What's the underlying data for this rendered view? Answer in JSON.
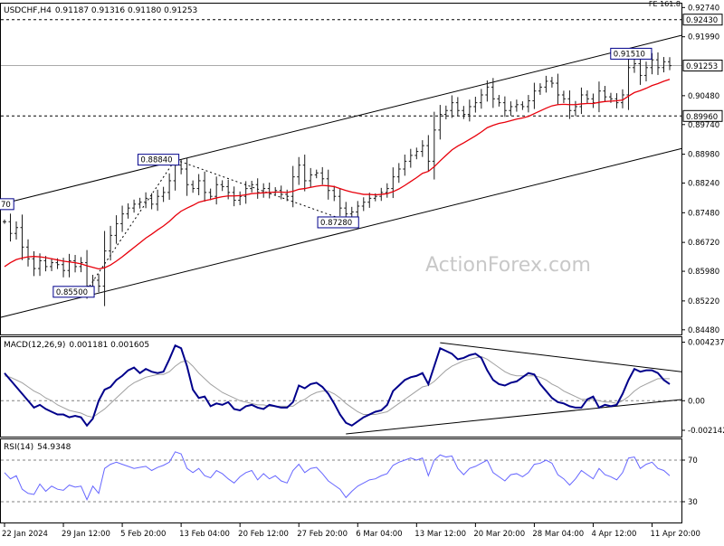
{
  "header": {
    "symbol_tf": "USDCHF,H4",
    "ohlc": "0.91187 0.91316 0.91180 0.91253",
    "corner_text": "FE 161.8"
  },
  "watermark": "ActionForex.com",
  "colors": {
    "price": "#1a1a1a",
    "ma": "#e8000b",
    "macd": "#00008b",
    "signal": "#a0a0a0",
    "rsi": "#6666ff",
    "trendline": "#000000",
    "grid": "#808080",
    "label_box": "#00008b"
  },
  "chart_data": [
    {
      "type": "candlestick",
      "name": "price",
      "ylim": [
        0.8436,
        0.9284
      ],
      "yticks": [
        "0.92740",
        "0.91990",
        "0.90480",
        "0.89740",
        "0.88980",
        "0.88240",
        "0.87480",
        "0.86720",
        "0.85980",
        "0.85220",
        "0.84480"
      ],
      "ytick_values": [
        0.9274,
        0.9199,
        0.9048,
        0.8974,
        0.8898,
        0.8824,
        0.8748,
        0.8672,
        0.8598,
        0.8522,
        0.8448
      ],
      "reference_lines": [
        {
          "label": "0.92430",
          "value": 0.9243,
          "style": "dashed"
        },
        {
          "label": "0.89960",
          "value": 0.8996,
          "style": "dashed"
        },
        {
          "label": "0.91253",
          "value": 0.91253,
          "style": "solid"
        }
      ],
      "annotations": [
        {
          "label": "0.88840",
          "x": 29,
          "y": 0.8884
        },
        {
          "label": "0.87280",
          "x": 58,
          "y": 0.8728
        },
        {
          "label": "0.85500",
          "x": 14,
          "y": 0.855
        },
        {
          "label": "0.91510",
          "x": 109,
          "y": 0.9151
        },
        {
          "label": "70",
          "x": 0,
          "y": 0.877
        }
      ],
      "x": [
        0,
        1,
        2,
        3,
        4,
        5,
        6,
        7,
        8,
        9,
        10,
        11,
        12,
        13,
        14,
        15,
        16,
        17,
        18,
        19,
        20,
        21,
        22,
        23,
        24,
        25,
        26,
        27,
        28,
        29,
        30,
        31,
        32,
        33,
        34,
        35,
        36,
        37,
        38,
        39,
        40,
        41,
        42,
        43,
        44,
        45,
        46,
        47,
        48,
        49,
        50,
        51,
        52,
        53,
        54,
        55,
        56,
        57,
        58,
        59,
        60,
        61,
        62,
        63,
        64,
        65,
        66,
        67,
        68,
        69,
        70,
        71,
        72,
        73,
        74,
        75,
        76,
        77,
        78,
        79,
        80,
        81,
        82,
        83,
        84,
        85,
        86,
        87,
        88,
        89,
        90,
        91,
        92,
        93,
        94,
        95,
        96,
        97,
        98,
        99,
        100,
        101,
        102,
        103,
        104,
        105,
        106,
        107,
        108,
        109,
        110,
        111,
        112,
        113
      ],
      "close": [
        0.8725,
        0.8695,
        0.871,
        0.866,
        0.863,
        0.8605,
        0.8625,
        0.861,
        0.862,
        0.8615,
        0.86,
        0.8625,
        0.861,
        0.862,
        0.856,
        0.8575,
        0.856,
        0.865,
        0.869,
        0.872,
        0.8745,
        0.876,
        0.877,
        0.8775,
        0.8785,
        0.877,
        0.879,
        0.88,
        0.883,
        0.887,
        0.886,
        0.882,
        0.881,
        0.883,
        0.88,
        0.879,
        0.882,
        0.8815,
        0.88,
        0.878,
        0.879,
        0.881,
        0.882,
        0.88,
        0.881,
        0.88,
        0.8805,
        0.8795,
        0.879,
        0.884,
        0.887,
        0.883,
        0.8845,
        0.885,
        0.8835,
        0.8805,
        0.879,
        0.876,
        0.8745,
        0.875,
        0.8765,
        0.8775,
        0.8785,
        0.879,
        0.88,
        0.881,
        0.884,
        0.886,
        0.888,
        0.8895,
        0.8905,
        0.892,
        0.888,
        0.896,
        0.9,
        0.901,
        0.903,
        0.901,
        0.9,
        0.902,
        0.903,
        0.905,
        0.907,
        0.904,
        0.903,
        0.901,
        0.902,
        0.9025,
        0.902,
        0.9035,
        0.906,
        0.907,
        0.9085,
        0.908,
        0.905,
        0.904,
        0.901,
        0.902,
        0.905,
        0.904,
        0.903,
        0.906,
        0.9045,
        0.904,
        0.903,
        0.905,
        0.912,
        0.913,
        0.91,
        0.912,
        0.914,
        0.912,
        0.9135,
        0.9125
      ],
      "ma": [
        0.861,
        0.862,
        0.8628,
        0.8632,
        0.8635,
        0.8636,
        0.8635,
        0.8633,
        0.863,
        0.8627,
        0.8624,
        0.8622,
        0.862,
        0.8617,
        0.8612,
        0.8608,
        0.8604,
        0.8607,
        0.8614,
        0.8624,
        0.8635,
        0.8647,
        0.8659,
        0.8671,
        0.8683,
        0.8693,
        0.8704,
        0.8714,
        0.8726,
        0.874,
        0.8752,
        0.876,
        0.8767,
        0.8775,
        0.8779,
        0.8782,
        0.8786,
        0.8789,
        0.8791,
        0.8791,
        0.8792,
        0.8794,
        0.8797,
        0.8798,
        0.8799,
        0.88,
        0.8801,
        0.8801,
        0.88,
        0.8803,
        0.8808,
        0.881,
        0.8813,
        0.8816,
        0.8818,
        0.8817,
        0.8815,
        0.881,
        0.8805,
        0.8801,
        0.8798,
        0.8795,
        0.8795,
        0.8794,
        0.8795,
        0.8797,
        0.8802,
        0.8809,
        0.8818,
        0.8828,
        0.8838,
        0.8849,
        0.8854,
        0.8866,
        0.8881,
        0.8895,
        0.8909,
        0.8919,
        0.8927,
        0.8936,
        0.8945,
        0.8955,
        0.8966,
        0.8972,
        0.8977,
        0.898,
        0.8984,
        0.8988,
        0.8991,
        0.8995,
        0.9002,
        0.9009,
        0.9016,
        0.9022,
        0.9025,
        0.9026,
        0.9025,
        0.9025,
        0.9027,
        0.9028,
        0.9028,
        0.9031,
        0.9033,
        0.9034,
        0.9035,
        0.9037,
        0.9047,
        0.9056,
        0.9061,
        0.9067,
        0.9074,
        0.9079,
        0.9085,
        0.909
      ],
      "channel": {
        "upper": [
          [
            0,
            0.877
          ],
          [
            113,
            0.9195
          ]
        ],
        "lower": [
          [
            0,
            0.848
          ],
          [
            113,
            0.8905
          ]
        ],
        "dotted": [
          [
            14,
            0.855
          ],
          [
            29,
            0.8884
          ],
          [
            58,
            0.8728
          ]
        ]
      }
    },
    {
      "type": "line",
      "name": "MACD(12,26,9)",
      "values_text": "0.001181 0.001605",
      "ylim": [
        -0.0026,
        0.0046
      ],
      "yticks": [
        "0.004237",
        "0.00",
        "-0.002142"
      ],
      "ytick_values": [
        0.004237,
        0.0,
        -0.002142
      ],
      "series": [
        {
          "name": "MACD",
          "values": [
            0.002,
            0.0015,
            0.001,
            0.0005,
            0.0,
            -0.0005,
            -0.0003,
            -0.0006,
            -0.0008,
            -0.001,
            -0.001,
            -0.0012,
            -0.0011,
            -0.0012,
            -0.0018,
            -0.0013,
            0.0,
            0.0008,
            0.001,
            0.0015,
            0.0018,
            0.0022,
            0.0024,
            0.002,
            0.0023,
            0.0021,
            0.002,
            0.0021,
            0.003,
            0.004,
            0.0038,
            0.0025,
            0.0008,
            0.0002,
            0.0003,
            -0.0004,
            -0.0002,
            -0.0003,
            -0.0001,
            -0.0006,
            -0.0007,
            -0.0004,
            -0.0003,
            -0.0005,
            -0.0006,
            -0.0003,
            -0.0004,
            -0.0005,
            -0.0005,
            -0.0001,
            0.0011,
            0.0009,
            0.0012,
            0.0013,
            0.001,
            0.0005,
            -0.0002,
            -0.001,
            -0.0016,
            -0.0018,
            -0.0015,
            -0.0012,
            -0.001,
            -0.0008,
            -0.0007,
            -0.0003,
            0.0007,
            0.0011,
            0.0015,
            0.0017,
            0.0018,
            0.002,
            0.0012,
            0.0025,
            0.0038,
            0.0036,
            0.0034,
            0.003,
            0.0031,
            0.0033,
            0.0034,
            0.0031,
            0.0022,
            0.0015,
            0.0012,
            0.0011,
            0.0013,
            0.0014,
            0.0017,
            0.002,
            0.0019,
            0.0012,
            0.0007,
            0.0002,
            -0.0001,
            -0.0002,
            -0.0004,
            -0.0005,
            -0.0005,
            0.0001,
            0.0003,
            -0.0005,
            -0.0003,
            -0.0004,
            -0.0003,
            0.0005,
            0.0015,
            0.0023,
            0.0021,
            0.0022,
            0.0022,
            0.002,
            0.0015,
            0.0012
          ]
        },
        {
          "name": "Signal",
          "values": [
            0.0018,
            0.0017,
            0.0015,
            0.0013,
            0.001,
            0.0007,
            0.0005,
            0.0002,
            0.0,
            -0.0003,
            -0.0005,
            -0.0007,
            -0.0008,
            -0.0009,
            -0.0011,
            -0.0012,
            -0.0009,
            -0.0006,
            -0.0002,
            0.0002,
            0.0006,
            0.001,
            0.0013,
            0.0015,
            0.0017,
            0.0018,
            0.0019,
            0.0019,
            0.0021,
            0.0025,
            0.0028,
            0.0029,
            0.0025,
            0.002,
            0.0016,
            0.0012,
            0.0009,
            0.0006,
            0.0004,
            0.0002,
            0.0,
            -0.0001,
            -0.0002,
            -0.0003,
            -0.0003,
            -0.0004,
            -0.0004,
            -0.0004,
            -0.0004,
            -0.0004,
            -0.0001,
            0.0001,
            0.0004,
            0.0006,
            0.0007,
            0.0007,
            0.0005,
            0.0002,
            -0.0002,
            -0.0005,
            -0.0008,
            -0.001,
            -0.001,
            -0.001,
            -0.0009,
            -0.0008,
            -0.0005,
            -0.0002,
            0.0001,
            0.0004,
            0.0007,
            0.001,
            0.0011,
            0.0014,
            0.0018,
            0.0022,
            0.0025,
            0.0027,
            0.0029,
            0.003,
            0.0031,
            0.0032,
            0.003,
            0.0027,
            0.0024,
            0.0021,
            0.0019,
            0.0018,
            0.0018,
            0.0018,
            0.0018,
            0.0017,
            0.0015,
            0.0012,
            0.001,
            0.0007,
            0.0005,
            0.0003,
            0.0001,
            0.0001,
            0.0001,
            0.0,
            -0.0001,
            -0.0001,
            -0.0002,
            0.0,
            0.0003,
            0.0007,
            0.001,
            0.0012,
            0.0014,
            0.0016,
            0.0016,
            0.0016
          ]
        }
      ],
      "trendlines": [
        [
          [
            58,
            -0.0024
          ],
          [
            113,
            -0.0
          ]
        ],
        [
          [
            74,
            0.0042
          ],
          [
            113,
            0.0022
          ]
        ]
      ]
    },
    {
      "type": "line",
      "name": "RSI(14)",
      "values_text": "54.9348",
      "ylim": [
        10,
        90
      ],
      "yticks": [
        "70",
        "30"
      ],
      "ytick_values": [
        70,
        30
      ],
      "series": [
        {
          "name": "RSI",
          "values": [
            58,
            52,
            55,
            42,
            38,
            37,
            47,
            40,
            45,
            42,
            41,
            46,
            44,
            45,
            32,
            45,
            38,
            62,
            66,
            68,
            66,
            64,
            62,
            63,
            64,
            60,
            63,
            65,
            68,
            78,
            76,
            62,
            58,
            62,
            55,
            53,
            60,
            57,
            52,
            48,
            54,
            58,
            60,
            51,
            57,
            52,
            55,
            50,
            48,
            60,
            66,
            58,
            62,
            63,
            57,
            50,
            46,
            42,
            34,
            40,
            45,
            48,
            51,
            52,
            55,
            57,
            65,
            68,
            70,
            72,
            70,
            72,
            55,
            70,
            75,
            73,
            74,
            62,
            56,
            62,
            64,
            67,
            70,
            58,
            54,
            50,
            56,
            57,
            54,
            58,
            66,
            67,
            70,
            67,
            56,
            52,
            46,
            52,
            60,
            56,
            52,
            62,
            56,
            54,
            51,
            58,
            72,
            73,
            62,
            66,
            68,
            62,
            60,
            55
          ]
        }
      ],
      "grid": [
        70,
        30
      ]
    }
  ],
  "x_axis": {
    "labels": [
      "22 Jan 2024",
      "29 Jan 12:00",
      "5 Feb 20:00",
      "13 Feb 04:00",
      "20 Feb 12:00",
      "27 Feb 20:00",
      "6 Mar 04:00",
      "13 Mar 12:00",
      "20 Mar 20:00",
      "28 Mar 04:00",
      "4 Apr 12:00",
      "11 Apr 20:00"
    ],
    "label_positions": [
      0,
      10,
      20,
      30,
      40,
      50,
      60,
      70,
      80,
      90,
      100,
      110
    ]
  }
}
